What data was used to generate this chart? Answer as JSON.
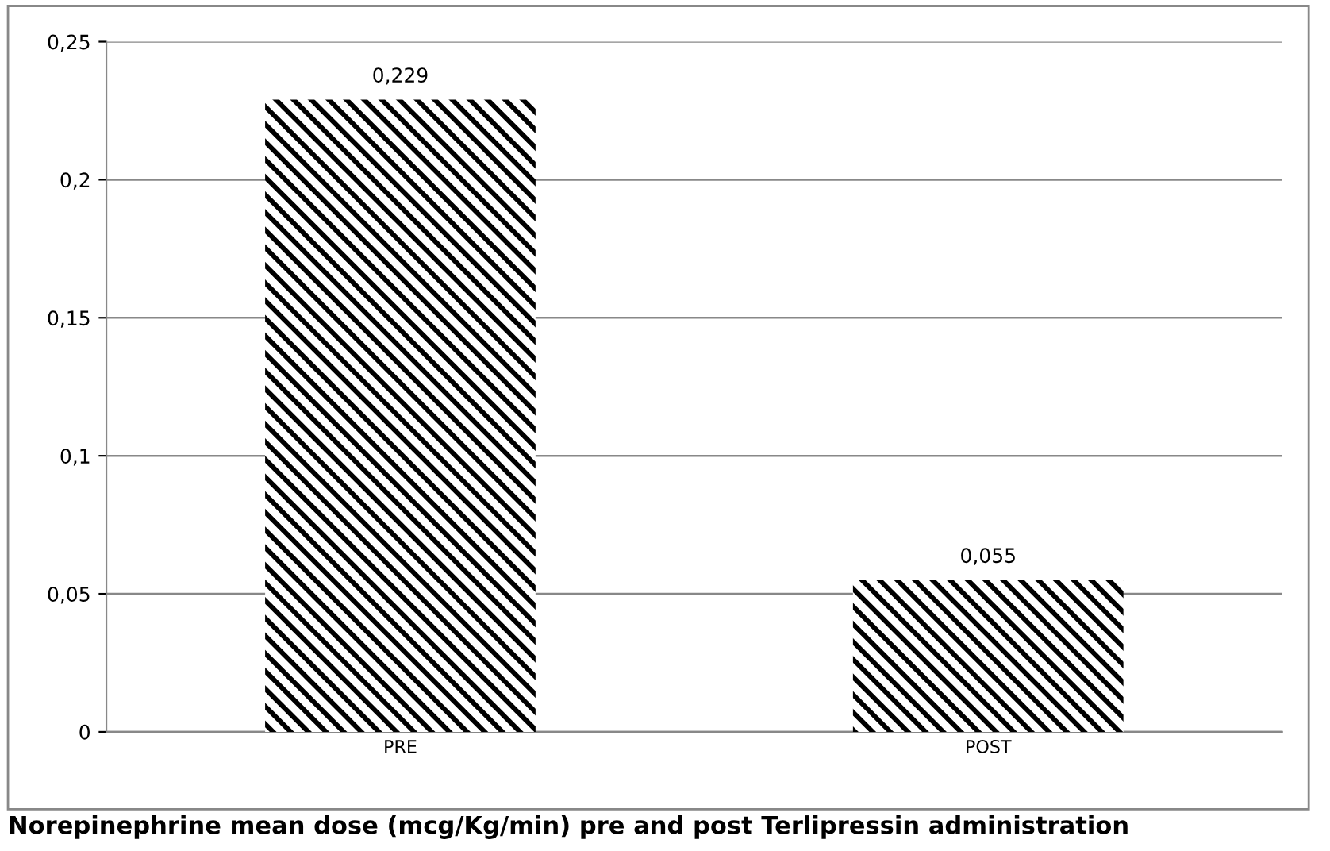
{
  "chart_data": {
    "type": "bar",
    "title": "Norepinephrine mean dose (mcg/Kg/min) pre and post Terlipressin administration",
    "categories": [
      "PRE",
      "POST"
    ],
    "values": [
      0.229,
      0.055
    ],
    "value_labels": [
      "0,229",
      "0,055"
    ],
    "color": "#000000",
    "ylim": [
      0,
      0.25
    ],
    "yticks": [
      {
        "value": 0,
        "label": "0"
      },
      {
        "value": 0.05,
        "label": "0,05"
      },
      {
        "value": 0.1,
        "label": "0,1"
      },
      {
        "value": 0.15,
        "label": "0,15"
      },
      {
        "value": 0.2,
        "label": "0,2"
      },
      {
        "value": 0.25,
        "label": "0,25"
      }
    ],
    "grid": "y",
    "legend": false
  }
}
